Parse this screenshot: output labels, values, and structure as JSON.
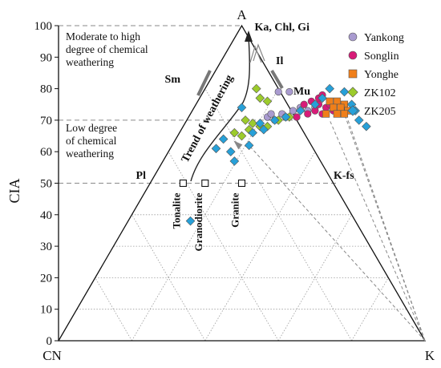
{
  "chart_data": {
    "type": "scatter",
    "ternary": true,
    "ylabel": "CIA",
    "yticks": [
      0,
      10,
      20,
      30,
      40,
      50,
      60,
      70,
      80,
      90,
      100
    ],
    "ylim": [
      0,
      100
    ],
    "corners": {
      "top": "A",
      "left": "CN",
      "right": "K"
    },
    "vertex_label": "Ka, Chl, Gi",
    "minerals": {
      "sm": "Sm",
      "il": "Il",
      "mu": "Mu",
      "pl": "Pl",
      "kfs": "K-fs"
    },
    "zones": {
      "high": [
        "Moderate to high",
        "degree of chemical",
        "weathering"
      ],
      "low": [
        "Low degree",
        "of chemical",
        "weathering"
      ]
    },
    "trend_label": "Trend of weathering",
    "rocks": [
      {
        "name": "Tonalite",
        "x": 0.34,
        "cia": 50
      },
      {
        "name": "Granodiorite",
        "x": 0.4,
        "cia": 50
      },
      {
        "name": "Granite",
        "x": 0.5,
        "cia": 50
      }
    ],
    "legend_position": "top-right",
    "colors": {
      "Yankong": "#a99bd0",
      "Songlin": "#d81b78",
      "Yonghe": "#f07f1a",
      "ZK102": "#9ccb2c",
      "ZK205": "#27a0d8"
    },
    "series": [
      {
        "name": "Yankong",
        "marker": "circle",
        "points": [
          [
            0.6,
            79
          ],
          [
            0.63,
            79
          ],
          [
            0.57,
            71
          ],
          [
            0.58,
            72
          ],
          [
            0.61,
            72
          ],
          [
            0.64,
            73
          ],
          [
            0.66,
            74
          ],
          [
            0.68,
            73
          ],
          [
            0.7,
            74
          ],
          [
            0.62,
            71
          ],
          [
            0.59,
            70
          ]
        ]
      },
      {
        "name": "Songlin",
        "marker": "circle",
        "points": [
          [
            0.67,
            75
          ],
          [
            0.69,
            76
          ],
          [
            0.71,
            77
          ],
          [
            0.72,
            78
          ],
          [
            0.7,
            73
          ],
          [
            0.73,
            74
          ],
          [
            0.74,
            75
          ],
          [
            0.68,
            72
          ],
          [
            0.72,
            72
          ],
          [
            0.65,
            71
          ],
          [
            0.75,
            73
          ],
          [
            0.71,
            75
          ]
        ]
      },
      {
        "name": "Yonghe",
        "marker": "square",
        "points": [
          [
            0.74,
            76
          ],
          [
            0.76,
            76
          ],
          [
            0.78,
            75
          ],
          [
            0.75,
            74
          ],
          [
            0.77,
            74
          ],
          [
            0.79,
            73
          ],
          [
            0.73,
            72
          ],
          [
            0.76,
            72
          ],
          [
            0.78,
            72
          ]
        ]
      },
      {
        "name": "ZK102",
        "marker": "diamond",
        "points": [
          [
            0.54,
            80
          ],
          [
            0.55,
            77
          ],
          [
            0.57,
            76
          ],
          [
            0.51,
            70
          ],
          [
            0.53,
            69
          ],
          [
            0.55,
            68
          ],
          [
            0.57,
            68
          ],
          [
            0.6,
            70
          ],
          [
            0.48,
            66
          ],
          [
            0.5,
            65
          ],
          [
            0.52,
            67
          ],
          [
            0.63,
            71
          ]
        ]
      },
      {
        "name": "ZK205",
        "marker": "diamond",
        "points": [
          [
            0.5,
            74
          ],
          [
            0.43,
            61
          ],
          [
            0.45,
            64
          ],
          [
            0.47,
            60
          ],
          [
            0.48,
            57
          ],
          [
            0.52,
            62
          ],
          [
            0.53,
            66
          ],
          [
            0.55,
            69
          ],
          [
            0.56,
            67
          ],
          [
            0.59,
            70
          ],
          [
            0.62,
            71
          ],
          [
            0.66,
            73
          ],
          [
            0.7,
            75
          ],
          [
            0.72,
            77
          ],
          [
            0.74,
            80
          ],
          [
            0.78,
            79
          ],
          [
            0.8,
            75
          ],
          [
            0.81,
            73
          ],
          [
            0.82,
            70
          ],
          [
            0.84,
            68
          ],
          [
            0.36,
            38
          ]
        ]
      }
    ]
  }
}
